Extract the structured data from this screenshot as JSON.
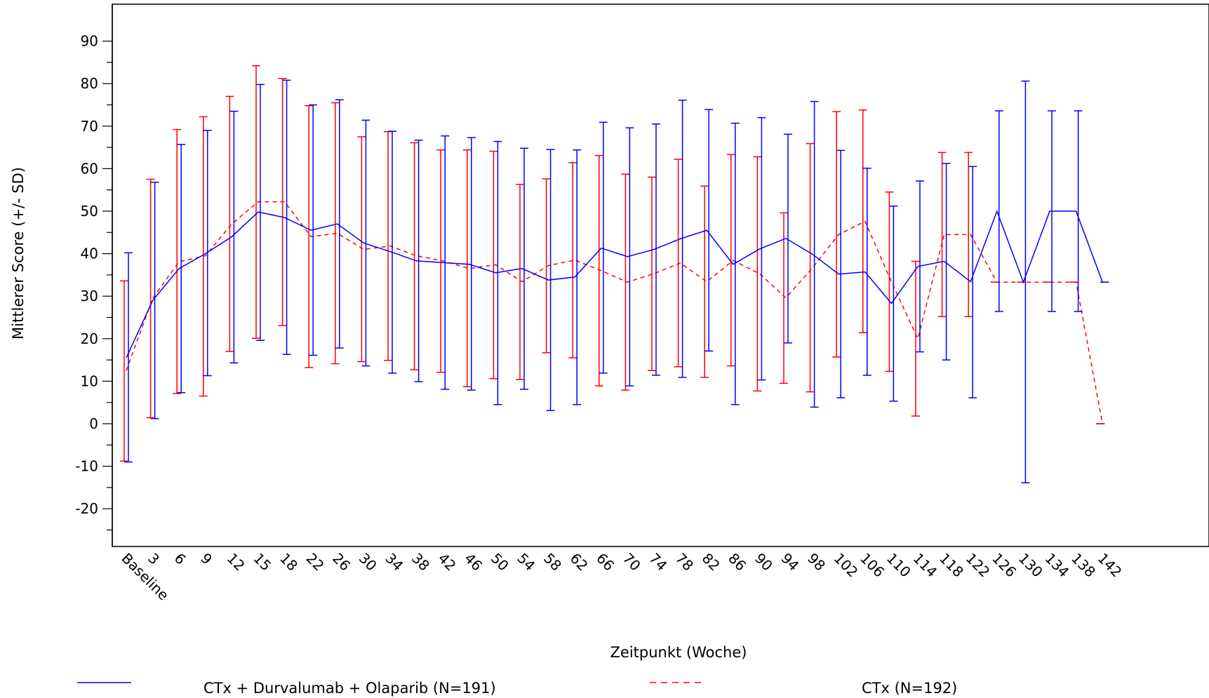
{
  "chart_data": {
    "type": "line",
    "xlabel": "Zeitpunkt (Woche)",
    "ylabel": "Mittlerer Score (+/- SD)",
    "ylim": [
      -30,
      100
    ],
    "yticks": [
      -20,
      -10,
      0,
      10,
      20,
      30,
      40,
      50,
      60,
      70,
      80,
      90
    ],
    "categories": [
      "Baseline",
      "3",
      "6",
      "9",
      "12",
      "15",
      "18",
      "22",
      "26",
      "30",
      "34",
      "38",
      "42",
      "46",
      "50",
      "54",
      "58",
      "62",
      "66",
      "70",
      "74",
      "78",
      "82",
      "86",
      "90",
      "94",
      "98",
      "102",
      "106",
      "110",
      "114",
      "118",
      "122",
      "126",
      "130",
      "134",
      "138",
      "142"
    ],
    "series": [
      {
        "name": "CTx + Durvalumab + Olaparib (N=191)",
        "color": "#0000ff",
        "style": "solid",
        "values": [
          15.5,
          29.0,
          36.5,
          40.0,
          44.0,
          49.8,
          48.5,
          45.5,
          47.0,
          42.5,
          40.5,
          38.3,
          37.9,
          37.5,
          35.5,
          36.5,
          33.8,
          34.5,
          41.3,
          39.3,
          41.0,
          43.5,
          45.5,
          37.5,
          41.1,
          43.6,
          39.9,
          35.2,
          35.7,
          28.3,
          37.0,
          38.2,
          33.4,
          50.0,
          33.3,
          50.0,
          50.0,
          33.3
        ],
        "lower": [
          -9.0,
          1.2,
          7.3,
          11.3,
          14.3,
          19.6,
          16.3,
          16.1,
          17.8,
          13.6,
          11.9,
          9.9,
          8.1,
          7.9,
          4.5,
          8.1,
          3.1,
          4.5,
          11.9,
          8.9,
          11.4,
          10.9,
          17.1,
          4.5,
          10.3,
          19.0,
          3.9,
          6.1,
          11.4,
          5.3,
          16.9,
          15.0,
          6.1,
          26.4,
          -13.9,
          26.4,
          26.4,
          33.3
        ],
        "upper": [
          40.2,
          56.8,
          65.7,
          69.0,
          73.5,
          79.8,
          80.8,
          75.0,
          76.2,
          71.4,
          68.8,
          66.7,
          67.7,
          67.3,
          66.4,
          64.8,
          64.5,
          64.4,
          70.9,
          69.6,
          70.5,
          76.1,
          73.9,
          70.7,
          72.0,
          68.1,
          75.8,
          64.3,
          60.1,
          51.2,
          57.1,
          61.2,
          60.5,
          73.6,
          80.6,
          73.6,
          73.6,
          33.3
        ]
      },
      {
        "name": "CTx (N=192)",
        "color": "#ff0000",
        "style": "dashed",
        "values": [
          12.5,
          29.5,
          38.1,
          39.5,
          47.0,
          52.2,
          52.2,
          44.0,
          44.8,
          41.0,
          41.8,
          39.5,
          38.3,
          36.5,
          37.4,
          33.4,
          37.2,
          38.5,
          36.0,
          33.3,
          35.3,
          37.8,
          33.4,
          38.4,
          35.3,
          29.6,
          36.6,
          44.5,
          47.6,
          33.4,
          20.0,
          44.5,
          44.5,
          33.3,
          33.3,
          33.3,
          33.3,
          0.0
        ],
        "lower": [
          -8.8,
          1.4,
          7.1,
          6.5,
          17.0,
          20.1,
          23.1,
          13.2,
          14.1,
          14.6,
          14.9,
          12.7,
          12.1,
          8.7,
          10.6,
          10.4,
          16.7,
          15.5,
          8.9,
          7.9,
          12.5,
          13.4,
          10.9,
          13.6,
          7.7,
          9.5,
          7.5,
          15.7,
          21.4,
          12.3,
          1.8,
          25.2,
          25.2,
          33.3,
          33.3,
          33.3,
          33.3,
          0.0
        ],
        "upper": [
          33.6,
          57.5,
          69.2,
          72.2,
          77.0,
          84.2,
          81.2,
          74.8,
          75.5,
          67.5,
          68.7,
          66.1,
          64.4,
          64.4,
          64.1,
          56.3,
          57.6,
          61.4,
          63.1,
          58.7,
          58.0,
          62.2,
          55.9,
          63.3,
          62.8,
          49.6,
          65.9,
          73.4,
          73.8,
          54.5,
          38.2,
          63.8,
          63.8,
          33.3,
          33.3,
          33.3,
          33.3,
          0.0
        ]
      }
    ],
    "legend": {
      "placement": "bottom",
      "entries": [
        {
          "label": "CTx + Durvalumab + Olaparib (N=191)",
          "color": "#0000ff",
          "style": "solid"
        },
        {
          "label": "CTx (N=192)",
          "color": "#ff0000",
          "style": "dashed"
        }
      ]
    }
  }
}
